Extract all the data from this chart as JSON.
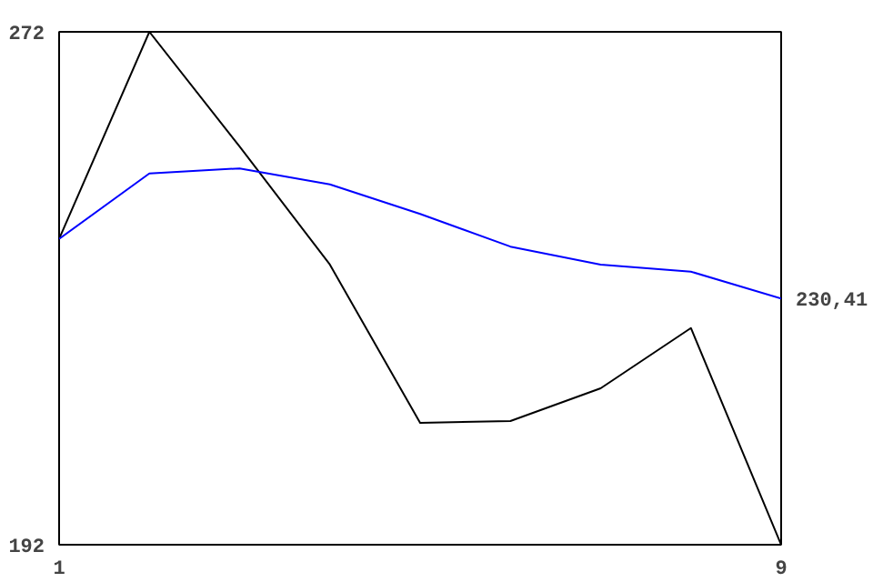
{
  "chart_data": {
    "type": "line",
    "x": [
      1,
      2,
      3,
      4,
      5,
      6,
      7,
      8,
      9
    ],
    "series": [
      {
        "color": "#000000",
        "values": [
          239.7,
          272,
          254.1,
          235.7,
          211,
          211.3,
          216.4,
          225.8,
          192
        ]
      },
      {
        "color": "#0000ff",
        "values": [
          239.7,
          249.9,
          250.7,
          248.2,
          243.6,
          238.5,
          235.7,
          234.6,
          230.41
        ]
      }
    ],
    "xlim": [
      1,
      9
    ],
    "ylim": [
      192,
      272
    ],
    "xticks": [
      1,
      9
    ],
    "yticks": [
      192,
      272
    ],
    "annotations": [
      {
        "text": "230,41",
        "x": 9,
        "y": 230.41
      }
    ],
    "marker": "none",
    "line_style": "solid"
  }
}
